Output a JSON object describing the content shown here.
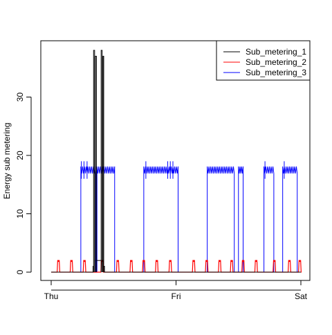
{
  "chart_data": {
    "type": "line",
    "title": "",
    "xlabel": "",
    "ylabel": "Energy sub metering",
    "x_domain": [
      "Thu 00:00",
      "Sat 00:00"
    ],
    "xlim_hours": [
      0,
      48
    ],
    "ylim": [
      0,
      38
    ],
    "x_ticks": [
      {
        "hour": 0,
        "label": "Thu"
      },
      {
        "hour": 24,
        "label": "Fri"
      },
      {
        "hour": 48,
        "label": "Sat"
      }
    ],
    "y_ticks": [
      0,
      10,
      20,
      30
    ],
    "grid": false,
    "legend_position": "top-right",
    "series": [
      {
        "name": "Sub_metering_1",
        "color": "#000000",
        "events": [
          {
            "start": 8.05,
            "end": 8.15,
            "value": 1
          },
          {
            "start": 8.15,
            "end": 8.35,
            "value": 38
          },
          {
            "start": 8.35,
            "end": 8.5,
            "value": 2
          },
          {
            "start": 8.5,
            "end": 8.7,
            "value": 37
          },
          {
            "start": 8.7,
            "end": 9.6,
            "value": 2
          },
          {
            "start": 9.6,
            "end": 9.8,
            "value": 38
          },
          {
            "start": 9.8,
            "end": 9.95,
            "value": 2
          },
          {
            "start": 9.95,
            "end": 10.1,
            "value": 37
          },
          {
            "start": 10.1,
            "end": 10.25,
            "value": 1
          }
        ]
      },
      {
        "name": "Sub_metering_2",
        "color": "#ff0000",
        "pulse_hours": [
          1.3,
          3.8,
          6.3,
          9.7,
          12.7,
          15.3,
          17.7,
          20.2,
          22.8,
          27.3,
          29.8,
          32.3,
          34.6,
          36.8,
          39.3,
          42.8,
          45.7,
          47.7
        ],
        "pulse_height": 2
      },
      {
        "name": "Sub_metering_3",
        "color": "#0000ff",
        "blocks": [
          {
            "start": 5.7,
            "end": 8.6,
            "value": 17.5
          },
          {
            "start": 8.8,
            "end": 12.2,
            "value": 17.5
          },
          {
            "start": 17.8,
            "end": 24.4,
            "value": 17.5
          },
          {
            "start": 30.0,
            "end": 35.2,
            "value": 17.5
          },
          {
            "start": 36.0,
            "end": 36.9,
            "value": 17.5
          },
          {
            "start": 40.9,
            "end": 42.8,
            "value": 17.5
          },
          {
            "start": 44.5,
            "end": 47.3,
            "value": 17.5
          }
        ],
        "spikes": [
          {
            "hour": 5.8,
            "value": 19
          },
          {
            "hour": 6.3,
            "value": 19
          },
          {
            "hour": 6.9,
            "value": 19
          },
          {
            "hour": 18.2,
            "value": 19
          },
          {
            "hour": 22.4,
            "value": 19
          },
          {
            "hour": 22.9,
            "value": 19
          },
          {
            "hour": 23.4,
            "value": 19
          },
          {
            "hour": 41.1,
            "value": 19
          },
          {
            "hour": 44.8,
            "value": 19
          }
        ]
      }
    ]
  }
}
